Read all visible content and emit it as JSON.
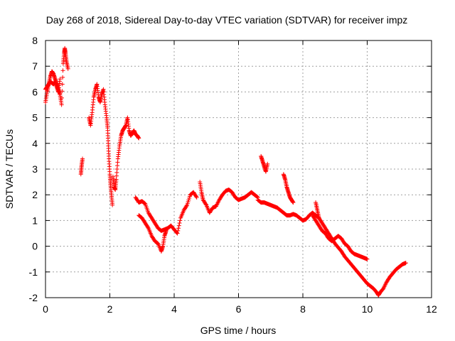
{
  "chart_data": {
    "type": "scatter",
    "title": "Day 268 of 2018, Sidereal Day-to-day VTEC variation (SDTVAR) for receiver impz",
    "xlabel": "GPS time / hours",
    "ylabel": "SDTVAR / TECUs",
    "xlim": [
      0,
      12
    ],
    "ylim": [
      -2,
      8
    ],
    "xticks": [
      "0",
      "2",
      "4",
      "6",
      "8",
      "10",
      "12"
    ],
    "yticks": [
      "-2",
      "-1",
      "0",
      "1",
      "2",
      "3",
      "4",
      "5",
      "6",
      "7",
      "8"
    ],
    "grid": true,
    "marker": "plus",
    "color": "#ff0000",
    "series": [
      {
        "name": "SDTVAR",
        "segments": [
          [
            [
              0.0,
              5.6
            ],
            [
              0.05,
              6.0
            ],
            [
              0.1,
              6.3
            ],
            [
              0.15,
              6.6
            ],
            [
              0.2,
              6.8
            ],
            [
              0.25,
              6.7
            ],
            [
              0.3,
              6.5
            ],
            [
              0.35,
              6.3
            ],
            [
              0.4,
              6.1
            ],
            [
              0.45,
              5.9
            ],
            [
              0.5,
              5.5
            ],
            [
              0.55,
              7.1
            ],
            [
              0.58,
              7.5
            ],
            [
              0.6,
              7.7
            ],
            [
              0.62,
              7.5
            ],
            [
              0.65,
              7.2
            ],
            [
              0.7,
              6.9
            ]
          ],
          [
            [
              0.0,
              6.1
            ],
            [
              0.05,
              6.2
            ],
            [
              0.1,
              6.3
            ],
            [
              0.15,
              6.4
            ],
            [
              0.2,
              6.35
            ],
            [
              0.25,
              6.3
            ],
            [
              0.3,
              6.4
            ],
            [
              0.35,
              6.2
            ],
            [
              0.4,
              6.0
            ],
            [
              0.45,
              6.5
            ]
          ],
          [
            [
              1.1,
              2.8
            ],
            [
              1.12,
              3.1
            ],
            [
              1.15,
              3.4
            ]
          ],
          [
            [
              1.35,
              5.0
            ],
            [
              1.4,
              4.7
            ],
            [
              1.45,
              5.2
            ],
            [
              1.5,
              5.8
            ],
            [
              1.55,
              6.1
            ],
            [
              1.6,
              6.3
            ],
            [
              1.65,
              5.8
            ],
            [
              1.7,
              5.6
            ],
            [
              1.75,
              5.9
            ],
            [
              1.8,
              6.1
            ],
            [
              1.85,
              5.5
            ],
            [
              1.9,
              5.0
            ],
            [
              1.93,
              4.6
            ],
            [
              1.95,
              4.0
            ],
            [
              1.97,
              3.4
            ],
            [
              2.0,
              2.8
            ],
            [
              2.02,
              2.4
            ],
            [
              2.05,
              2.0
            ],
            [
              2.08,
              1.6
            ]
          ],
          [
            [
              2.1,
              2.7
            ],
            [
              2.13,
              2.3
            ],
            [
              2.17,
              2.2
            ],
            [
              2.2,
              2.6
            ],
            [
              2.25,
              3.4
            ],
            [
              2.3,
              3.9
            ],
            [
              2.35,
              4.3
            ],
            [
              2.4,
              4.5
            ],
            [
              2.45,
              4.6
            ],
            [
              2.5,
              4.7
            ],
            [
              2.55,
              5.0
            ],
            [
              2.6,
              4.5
            ],
            [
              2.65,
              4.3
            ],
            [
              2.7,
              4.4
            ],
            [
              2.75,
              4.5
            ],
            [
              2.8,
              4.35
            ],
            [
              2.85,
              4.3
            ],
            [
              2.9,
              4.2
            ]
          ],
          [
            [
              2.8,
              1.9
            ],
            [
              2.9,
              1.7
            ],
            [
              3.0,
              1.75
            ],
            [
              3.1,
              1.65
            ],
            [
              3.2,
              1.3
            ],
            [
              3.3,
              1.1
            ],
            [
              3.4,
              0.9
            ],
            [
              3.5,
              0.7
            ],
            [
              3.6,
              0.6
            ],
            [
              3.7,
              0.65
            ],
            [
              3.8,
              0.7
            ],
            [
              3.9,
              0.8
            ],
            [
              4.0,
              0.65
            ],
            [
              4.1,
              0.5
            ],
            [
              4.2,
              1.1
            ],
            [
              4.3,
              1.4
            ],
            [
              4.4,
              1.6
            ],
            [
              4.5,
              2.0
            ],
            [
              4.6,
              2.1
            ],
            [
              4.7,
              1.9
            ]
          ],
          [
            [
              2.9,
              1.2
            ],
            [
              3.0,
              1.1
            ],
            [
              3.1,
              0.9
            ],
            [
              3.2,
              0.7
            ],
            [
              3.3,
              0.4
            ],
            [
              3.4,
              0.2
            ],
            [
              3.5,
              0.1
            ],
            [
              3.6,
              -0.2
            ],
            [
              3.65,
              0.0
            ],
            [
              3.7,
              0.4
            ],
            [
              3.75,
              0.6
            ]
          ],
          [
            [
              4.8,
              2.5
            ],
            [
              4.85,
              2.1
            ],
            [
              4.9,
              1.8
            ],
            [
              5.0,
              1.6
            ],
            [
              5.1,
              1.3
            ],
            [
              5.2,
              1.5
            ],
            [
              5.3,
              1.55
            ],
            [
              5.4,
              1.8
            ],
            [
              5.5,
              2.0
            ],
            [
              5.6,
              2.15
            ],
            [
              5.7,
              2.2
            ],
            [
              5.8,
              2.1
            ],
            [
              5.9,
              1.9
            ],
            [
              6.0,
              1.8
            ],
            [
              6.1,
              1.85
            ],
            [
              6.2,
              1.9
            ],
            [
              6.3,
              2.0
            ],
            [
              6.4,
              2.1
            ],
            [
              6.5,
              2.0
            ],
            [
              6.6,
              1.9
            ]
          ],
          [
            [
              6.6,
              1.8
            ],
            [
              6.7,
              1.7
            ],
            [
              6.8,
              1.7
            ],
            [
              6.9,
              1.65
            ],
            [
              7.0,
              1.6
            ],
            [
              7.1,
              1.55
            ],
            [
              7.2,
              1.5
            ],
            [
              7.3,
              1.4
            ],
            [
              7.4,
              1.3
            ],
            [
              7.5,
              1.2
            ],
            [
              7.6,
              1.2
            ],
            [
              7.7,
              1.25
            ],
            [
              7.8,
              1.2
            ],
            [
              7.9,
              1.1
            ],
            [
              8.0,
              1.0
            ],
            [
              8.1,
              1.05
            ],
            [
              8.2,
              1.2
            ],
            [
              8.3,
              1.3
            ],
            [
              8.4,
              1.2
            ],
            [
              8.5,
              1.1
            ]
          ],
          [
            [
              6.7,
              3.5
            ],
            [
              6.75,
              3.3
            ],
            [
              6.8,
              3.1
            ],
            [
              6.85,
              2.9
            ],
            [
              6.9,
              3.2
            ]
          ],
          [
            [
              7.4,
              2.8
            ],
            [
              7.45,
              2.6
            ],
            [
              7.5,
              2.3
            ],
            [
              7.55,
              2.1
            ],
            [
              7.6,
              1.9
            ],
            [
              7.65,
              1.8
            ],
            [
              7.7,
              1.7
            ]
          ],
          [
            [
              8.3,
              1.2
            ],
            [
              8.4,
              1.0
            ],
            [
              8.5,
              0.8
            ],
            [
              8.6,
              0.6
            ],
            [
              8.7,
              0.5
            ],
            [
              8.8,
              0.3
            ],
            [
              8.9,
              0.2
            ],
            [
              9.0,
              0.3
            ],
            [
              9.1,
              0.4
            ],
            [
              9.2,
              0.3
            ],
            [
              9.3,
              0.1
            ],
            [
              9.4,
              0.0
            ],
            [
              9.5,
              -0.2
            ],
            [
              9.6,
              -0.3
            ],
            [
              9.7,
              -0.35
            ],
            [
              9.8,
              -0.4
            ],
            [
              9.9,
              -0.45
            ],
            [
              10.0,
              -0.5
            ]
          ],
          [
            [
              8.4,
              1.7
            ],
            [
              8.45,
              1.4
            ],
            [
              8.5,
              1.1
            ],
            [
              8.6,
              0.9
            ],
            [
              8.7,
              0.7
            ],
            [
              8.8,
              0.5
            ],
            [
              8.9,
              0.3
            ],
            [
              9.0,
              0.1
            ],
            [
              9.1,
              -0.05
            ],
            [
              9.2,
              -0.2
            ],
            [
              9.3,
              -0.4
            ],
            [
              9.4,
              -0.55
            ],
            [
              9.5,
              -0.7
            ],
            [
              9.6,
              -0.85
            ],
            [
              9.7,
              -1.0
            ],
            [
              9.8,
              -1.15
            ],
            [
              9.9,
              -1.3
            ],
            [
              10.0,
              -1.45
            ],
            [
              10.1,
              -1.55
            ],
            [
              10.2,
              -1.65
            ],
            [
              10.3,
              -1.8
            ],
            [
              10.35,
              -1.9
            ]
          ],
          [
            [
              10.35,
              -1.9
            ],
            [
              10.4,
              -1.8
            ],
            [
              10.5,
              -1.65
            ],
            [
              10.6,
              -1.4
            ],
            [
              10.7,
              -1.2
            ],
            [
              10.8,
              -1.05
            ],
            [
              10.9,
              -0.9
            ],
            [
              11.0,
              -0.8
            ],
            [
              11.1,
              -0.7
            ],
            [
              11.2,
              -0.65
            ]
          ]
        ]
      }
    ]
  }
}
